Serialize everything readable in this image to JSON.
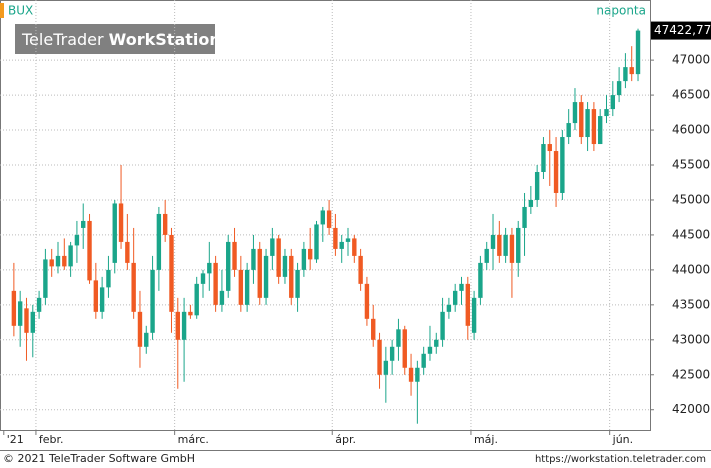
{
  "chart_data": {
    "type": "candlestick",
    "symbol": "BUX",
    "period": "naponta",
    "watermark": {
      "brand": "TeleTrader",
      "product": "WorkStation"
    },
    "footer_left": "© 2021 TeleTrader Software GmbH",
    "footer_right": "https://workstation.teletrader.com",
    "up_color": "#1aa58a",
    "down_color": "#f05a23",
    "last_price_label": "47422,77",
    "grid": true,
    "xlim": [
      -2.2,
      100.9
    ],
    "xticks": [
      {
        "value": -1.6,
        "label": "'21"
      },
      {
        "value": 3.5,
        "label": "febr."
      },
      {
        "value": 25.5,
        "label": "márc."
      },
      {
        "value": 50.5,
        "label": "ápr."
      },
      {
        "value": 72.5,
        "label": "máj."
      },
      {
        "value": 94.5,
        "label": "jún."
      }
    ],
    "ylim": [
      41710,
      47860
    ],
    "yticks": [
      42000,
      42500,
      43000,
      43500,
      44000,
      44500,
      45000,
      45500,
      46000,
      46500,
      47000
    ],
    "open": [
      43700,
      43200,
      43450,
      43100,
      43400,
      43600,
      44150,
      44050,
      44200,
      44050,
      44350,
      44600,
      44700,
      43850,
      43400,
      43750,
      44100,
      44950,
      44400,
      44100,
      43400,
      42900,
      43100,
      44000,
      44800,
      44500,
      43400,
      43000,
      43400,
      43350,
      43800,
      43950,
      44100,
      43500,
      43700,
      44400,
      44000,
      43500,
      44000,
      44300,
      43600,
      44200,
      44450,
      43900,
      44200,
      43600,
      44000,
      44300,
      44150,
      44650,
      44850,
      44600,
      44300,
      44400,
      44450,
      44200,
      43800,
      43300,
      43000,
      42500,
      42700,
      42900,
      43150,
      42600,
      42400,
      42600,
      42800,
      42900,
      43000,
      43400,
      43500,
      43700,
      43800,
      43100,
      43600,
      44100,
      44300,
      44500,
      44200,
      44500,
      44100,
      44600,
      44900,
      45000,
      45400,
      45800,
      45700,
      45100,
      45900,
      46100,
      46400,
      45900,
      46300,
      45800,
      46200,
      46300,
      46500,
      46700,
      46900,
      46800
    ],
    "high": [
      44100,
      43700,
      43600,
      43500,
      43700,
      44300,
      44300,
      44400,
      44450,
      44400,
      44700,
      44950,
      44800,
      44100,
      43900,
      44200,
      45000,
      45500,
      44800,
      44600,
      43700,
      43200,
      44200,
      44900,
      45000,
      44600,
      43600,
      43600,
      43500,
      43900,
      44000,
      44400,
      44200,
      44000,
      44500,
      44600,
      44200,
      44100,
      44500,
      44400,
      44300,
      44600,
      44500,
      44300,
      44300,
      44100,
      44400,
      44600,
      44700,
      44900,
      45000,
      44800,
      44500,
      44600,
      44500,
      44300,
      43900,
      43500,
      43100,
      42900,
      43000,
      43300,
      43200,
      42800,
      42700,
      42900,
      43200,
      43100,
      43600,
      43600,
      43800,
      43900,
      43900,
      43700,
      44200,
      44400,
      44800,
      44700,
      44600,
      44600,
      44700,
      45100,
      45200,
      45500,
      45900,
      46000,
      45900,
      46000,
      46300,
      46600,
      46500,
      46400,
      46400,
      46300,
      46500,
      46700,
      46900,
      47100,
      47200,
      47450
    ],
    "low": [
      43050,
      42900,
      42700,
      42750,
      43300,
      43500,
      43900,
      43950,
      44000,
      43900,
      44100,
      44300,
      43800,
      43300,
      43300,
      43600,
      43950,
      44300,
      44000,
      43300,
      42600,
      42800,
      43000,
      43700,
      44400,
      43100,
      42300,
      42400,
      43300,
      43300,
      43600,
      43700,
      43400,
      43400,
      43600,
      43900,
      43400,
      43400,
      43800,
      43500,
      43500,
      44000,
      43800,
      43800,
      43500,
      43400,
      43900,
      44000,
      44100,
      44400,
      44500,
      44200,
      44100,
      44200,
      44100,
      43700,
      43200,
      42900,
      42300,
      42100,
      42500,
      42700,
      42500,
      42200,
      41800,
      42500,
      42700,
      42800,
      42900,
      43300,
      43400,
      43500,
      43000,
      43000,
      43500,
      44000,
      44000,
      44100,
      44100,
      43600,
      43900,
      44200,
      44800,
      44900,
      45300,
      45200,
      44900,
      45000,
      45800,
      46000,
      45800,
      45700,
      45700,
      45800,
      46100,
      46200,
      46400,
      46600,
      46700,
      46700
    ],
    "close": [
      43200,
      43550,
      43100,
      43400,
      43600,
      44150,
      44050,
      44200,
      44050,
      44350,
      44500,
      44700,
      43850,
      43400,
      43750,
      44000,
      44950,
      44400,
      44100,
      43400,
      42900,
      43100,
      44000,
      44800,
      44500,
      43400,
      43000,
      43400,
      43350,
      43800,
      43950,
      44100,
      43500,
      43700,
      44400,
      44000,
      43500,
      44000,
      44300,
      43600,
      44200,
      44450,
      43900,
      44200,
      43600,
      44000,
      44300,
      44150,
      44650,
      44850,
      44600,
      44300,
      44400,
      44450,
      44200,
      43800,
      43300,
      43000,
      42500,
      42700,
      42900,
      43150,
      42600,
      42400,
      42600,
      42800,
      42900,
      43000,
      43400,
      43500,
      43700,
      43800,
      43200,
      43600,
      44100,
      44300,
      44500,
      44200,
      44500,
      44100,
      44600,
      44900,
      45000,
      45400,
      45800,
      45700,
      45100,
      45900,
      46100,
      46400,
      45900,
      46300,
      45800,
      46200,
      46300,
      46500,
      46700,
      46900,
      46800,
      47422.77
    ]
  }
}
